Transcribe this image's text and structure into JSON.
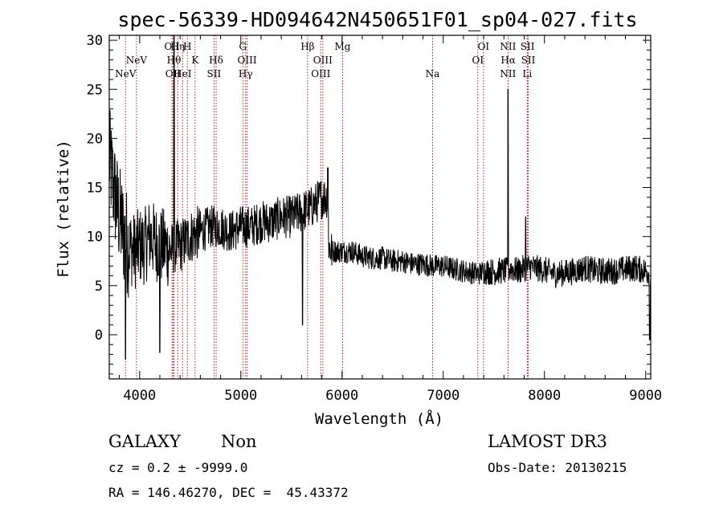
{
  "chart_data": {
    "type": "line",
    "title": "spec-56339-HD094642N450651F01_sp04-027.fits",
    "xlabel": "Wavelength (Å)",
    "ylabel": "Flux (relative)",
    "xlim": [
      3700,
      9050
    ],
    "ylim": [
      -4.5,
      30.5
    ],
    "xticks": [
      4000,
      5000,
      6000,
      7000,
      8000,
      9000
    ],
    "yticks": [
      0,
      5,
      10,
      15,
      20,
      25,
      30
    ],
    "grid": false,
    "spectrum_anchors": {
      "x": [
        3700,
        3730,
        3760,
        3800,
        3850,
        3900,
        3950,
        4000,
        4050,
        4100,
        4150,
        4200,
        4250,
        4300,
        4350,
        4400,
        4500,
        4600,
        4700,
        4800,
        4900,
        5000,
        5100,
        5200,
        5300,
        5400,
        5500,
        5600,
        5700,
        5750,
        5800,
        5850,
        5870,
        5900,
        6000,
        6100,
        6200,
        6300,
        6400,
        6500,
        6600,
        6700,
        6800,
        6900,
        7000,
        7100,
        7200,
        7300,
        7350,
        7400,
        7500,
        7550,
        7600,
        7640,
        7660,
        7700,
        7750,
        7800,
        7830,
        7850,
        7900,
        8000,
        8100,
        8200,
        8300,
        8400,
        8500,
        8600,
        8700,
        8800,
        8900,
        9000,
        9050
      ],
      "y": [
        18,
        16,
        14,
        12,
        10,
        9,
        8.5,
        9,
        9,
        10,
        9.5,
        9,
        9,
        8.5,
        9,
        9,
        10,
        10.5,
        11,
        11,
        10.5,
        11,
        11,
        11.5,
        11.5,
        12,
        12,
        12.5,
        13,
        13.5,
        14,
        14,
        9,
        8.5,
        8.5,
        8.5,
        8.0,
        7.8,
        7.8,
        7.5,
        7.5,
        7.2,
        7.2,
        7.0,
        7.0,
        6.7,
        6.5,
        6.3,
        6.2,
        6.5,
        6.4,
        6.5,
        6.5,
        6.5,
        6.8,
        6.6,
        6.5,
        6.8,
        6.8,
        7.0,
        6.8,
        6.6,
        6.2,
        6.3,
        6.5,
        6.8,
        6.5,
        6.5,
        6.5,
        6.7,
        6.8,
        6.5,
        6.3
      ]
    },
    "spectrum_features": [
      {
        "x": 4340,
        "y": 31
      },
      {
        "x": 4760,
        "y": 9.5
      },
      {
        "x": 5610,
        "y": 1.0
      },
      {
        "x": 5860,
        "y": 17
      },
      {
        "x": 7641,
        "y": 25
      },
      {
        "x": 7815,
        "y": 12
      },
      {
        "x": 3860,
        "y": -2.5
      },
      {
        "x": 4200,
        "y": -1.8
      },
      {
        "x": 9040,
        "y": -0.5
      }
    ],
    "lines": [
      {
        "label": "NeV",
        "x": 3861,
        "row": 2
      },
      {
        "label": "NeV",
        "x": 3969,
        "row": 1
      },
      {
        "label": "OII",
        "x": 4320,
        "row": 0
      },
      {
        "label": "Hη",
        "x": 4377,
        "row": 0
      },
      {
        "label": "H",
        "x": 4472,
        "row": 0
      },
      {
        "label": "Hθ",
        "x": 4339,
        "row": 1
      },
      {
        "label": "K",
        "x": 4548,
        "row": 1
      },
      {
        "label": "Hδ",
        "x": 4756,
        "row": 1
      },
      {
        "label": "OII",
        "x": 4330,
        "row": 2
      },
      {
        "label": "HeI",
        "x": 4425,
        "row": 2
      },
      {
        "label": "SII",
        "x": 4735,
        "row": 2
      },
      {
        "label": "G",
        "x": 5020,
        "row": 0
      },
      {
        "label": "OIII",
        "x": 5062,
        "row": 1
      },
      {
        "label": "Hγ",
        "x": 5047,
        "row": 2
      },
      {
        "label": "Hβ",
        "x": 5660,
        "row": 0
      },
      {
        "label": "OIII",
        "x": 5810,
        "row": 1
      },
      {
        "label": "OIII",
        "x": 5790,
        "row": 2
      },
      {
        "label": "Mg",
        "x": 6006,
        "row": 0
      },
      {
        "label": "Na",
        "x": 6895,
        "row": 2
      },
      {
        "label": "OI",
        "x": 7398,
        "row": 0
      },
      {
        "label": "OI",
        "x": 7342,
        "row": 1
      },
      {
        "label": "NII",
        "x": 7640,
        "row": 0
      },
      {
        "label": "SII",
        "x": 7833,
        "row": 0
      },
      {
        "label": "Hα",
        "x": 7642,
        "row": 1
      },
      {
        "label": "SII",
        "x": 7840,
        "row": 1
      },
      {
        "label": "NII",
        "x": 7640,
        "row": 2
      },
      {
        "label": "Li",
        "x": 7830,
        "row": 2
      }
    ]
  },
  "info": {
    "class": "GALAXY",
    "subclass": "Non",
    "survey": "LAMOST DR3",
    "cz": "cz = 0.2 ± -9999.0",
    "obs_date": "Obs-Date: 20130215",
    "radec": "RA = 146.46270, DEC =  45.43372"
  },
  "colors": {
    "line_marker": "#b02020",
    "spectrum": "#000000"
  }
}
